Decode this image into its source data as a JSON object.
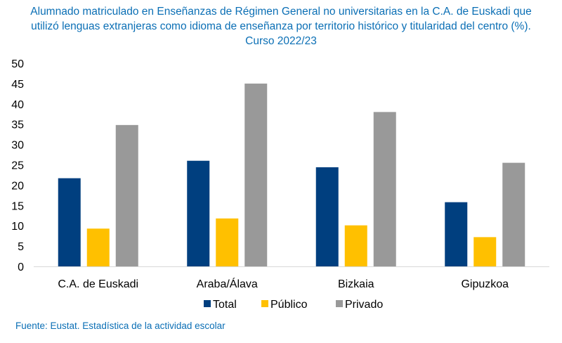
{
  "title_lines": [
    "Alumnado matriculado en Enseñanzas de Régimen General no universitarias en la C.A. de Euskadi que",
    "utilizó lenguas extranjeras como idioma de enseñanza por territorio histórico y titularidad del centro (%).",
    "Curso 2022/23"
  ],
  "footer": "Fuente: Eustat. Estadística de la actividad escolar",
  "chart_data": {
    "type": "bar",
    "categories": [
      "C.A. de Euskadi",
      "Araba/Álava",
      "Bizkaia",
      "Gipuzkoa"
    ],
    "series": [
      {
        "name": "Total",
        "color": "#003f7f",
        "values": [
          21.7,
          26.0,
          24.4,
          15.8
        ]
      },
      {
        "name": "Público",
        "color": "#ffc000",
        "values": [
          9.3,
          11.8,
          10.1,
          7.2
        ]
      },
      {
        "name": "Privado",
        "color": "#999999",
        "values": [
          34.8,
          45.0,
          38.0,
          25.5
        ]
      }
    ],
    "ylim": [
      0,
      50
    ],
    "yticks": [
      "0",
      "5",
      "10",
      "15",
      "20",
      "25",
      "30",
      "35",
      "40",
      "45",
      "50"
    ],
    "grid": false,
    "legend_position": "bottom"
  }
}
